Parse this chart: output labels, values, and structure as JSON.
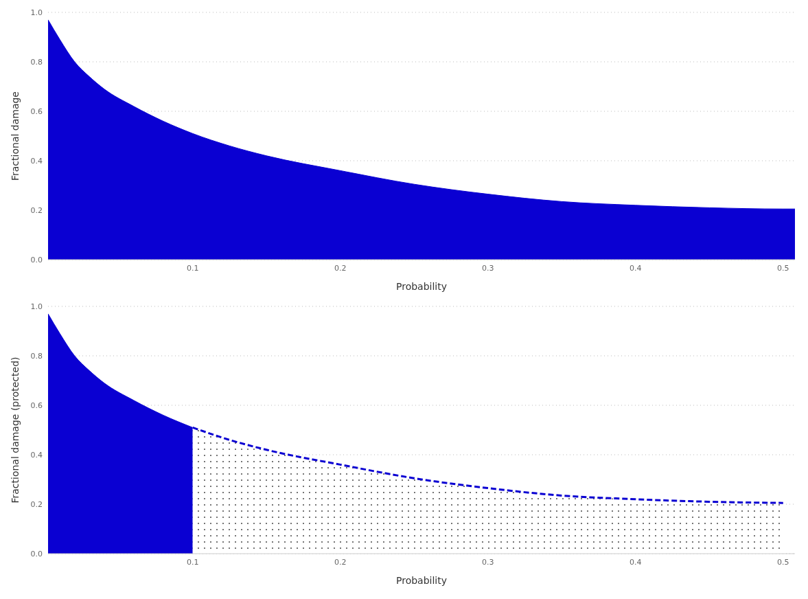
{
  "chart_data": [
    {
      "type": "area",
      "xlabel": "Probability",
      "ylabel": "Fractional damage",
      "xlim": [
        0.002,
        0.508
      ],
      "ylim": [
        0,
        1
      ],
      "xticks": [
        0.1,
        0.2,
        0.3,
        0.4,
        0.5
      ],
      "yticks": [
        {
          "value": 0,
          "label": "0.0"
        },
        {
          "value": 0.2,
          "label": "0.2"
        },
        {
          "value": 0.4,
          "label": "0.4"
        },
        {
          "value": 0.6,
          "label": "0.6"
        },
        {
          "value": 0.8,
          "label": "0.8"
        },
        {
          "value": 1,
          "label": "1.0"
        }
      ],
      "grid": "y",
      "legend": false,
      "series": [
        {
          "color": "#0a00d2",
          "line_style": "solid",
          "x": [
            0.002,
            0.01,
            0.02,
            0.03,
            0.04,
            0.06,
            0.08,
            0.1,
            0.125,
            0.15,
            0.2,
            0.25,
            0.3,
            0.35,
            0.4,
            0.45,
            0.5,
            0.508
          ],
          "values": [
            0.97,
            0.89,
            0.8,
            0.74,
            0.69,
            0.62,
            0.56,
            0.51,
            0.46,
            0.42,
            0.36,
            0.305,
            0.265,
            0.235,
            0.22,
            0.21,
            0.205,
            0.205
          ]
        }
      ]
    },
    {
      "type": "area",
      "xlabel": "Probability",
      "ylabel": "Fractional damage (protected)",
      "xlim": [
        0.002,
        0.508
      ],
      "ylim": [
        0,
        1
      ],
      "xticks": [
        0.1,
        0.2,
        0.3,
        0.4,
        0.5
      ],
      "yticks": [
        {
          "value": 0,
          "label": "0.0"
        },
        {
          "value": 0.2,
          "label": "0.2"
        },
        {
          "value": 0.4,
          "label": "0.4"
        },
        {
          "value": 0.6,
          "label": "0.6"
        },
        {
          "value": 0.8,
          "label": "0.8"
        },
        {
          "value": 1,
          "label": "1.0"
        }
      ],
      "grid": "y",
      "legend": false,
      "series": [
        {
          "color": "#0a00d2",
          "line_style": "solid",
          "x": [
            0.002,
            0.01,
            0.02,
            0.03,
            0.04,
            0.06,
            0.08,
            0.1
          ],
          "values": [
            0.97,
            0.89,
            0.8,
            0.74,
            0.69,
            0.62,
            0.56,
            0.51
          ]
        },
        {
          "color": "#0a00d2",
          "line_style": "dashed",
          "x": [
            0.1,
            0.125,
            0.15,
            0.2,
            0.25,
            0.3,
            0.35,
            0.4,
            0.45,
            0.5
          ],
          "values": [
            0.51,
            0.46,
            0.42,
            0.36,
            0.305,
            0.265,
            0.235,
            0.22,
            0.21,
            0.205
          ]
        }
      ]
    }
  ]
}
